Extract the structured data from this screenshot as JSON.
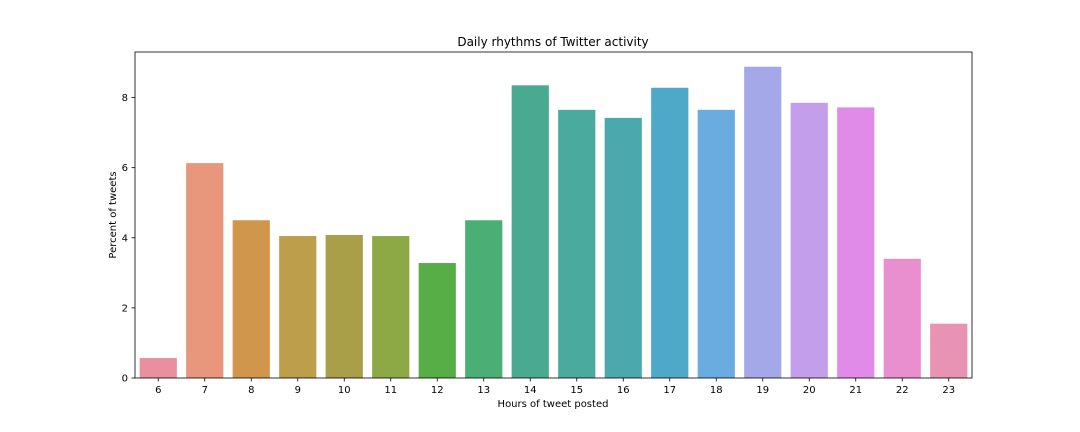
{
  "chart_data": {
    "type": "bar",
    "title": "Daily rhythms of Twitter activity",
    "xlabel": "Hours of tweet posted",
    "ylabel": "Percent of tweets",
    "categories": [
      "6",
      "7",
      "8",
      "9",
      "10",
      "11",
      "12",
      "13",
      "14",
      "15",
      "16",
      "17",
      "18",
      "19",
      "20",
      "21",
      "22",
      "23"
    ],
    "values": [
      0.57,
      6.13,
      4.5,
      4.05,
      4.08,
      4.05,
      3.28,
      4.5,
      8.35,
      7.65,
      7.42,
      8.28,
      7.65,
      8.88,
      7.85,
      7.72,
      3.4,
      1.55
    ],
    "ylim": [
      0,
      9.3
    ],
    "yticks": [
      0,
      2,
      4,
      6,
      8
    ],
    "grid": false,
    "colors": [
      "#e8909e",
      "#e8967c",
      "#d0964b",
      "#bc9e4b",
      "#a89f48",
      "#8ca946",
      "#58ae46",
      "#4aaf75",
      "#49aa91",
      "#4aaa9e",
      "#4ba9ad",
      "#4ea9c8",
      "#6aabe0",
      "#a5a8e8",
      "#c39eea",
      "#e08be8",
      "#e98ece",
      "#e892b4"
    ]
  }
}
